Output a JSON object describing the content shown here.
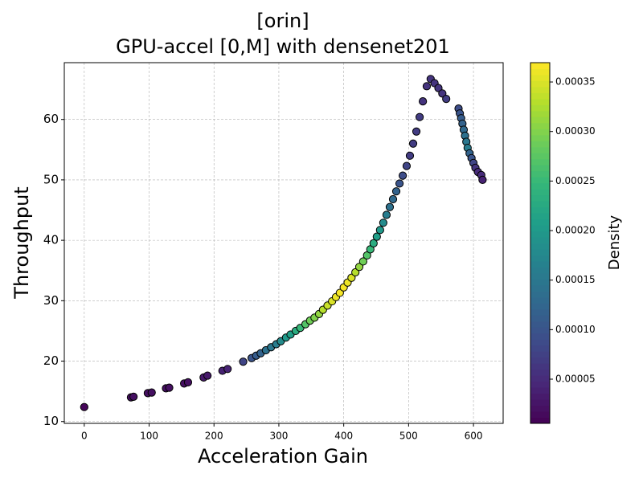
{
  "chart_data": {
    "type": "scatter",
    "title": [
      "[orin]",
      "GPU-accel [0,M] with densenet201"
    ],
    "x_label": "Acceleration Gain",
    "y_label": "Throughput",
    "colorbar_label": "Density",
    "colormap": "viridis",
    "grid": true,
    "xlim": [
      -30.75,
      645.75
    ],
    "xticks": [
      0,
      100,
      200,
      300,
      400,
      500,
      600
    ],
    "ylim": [
      9.7,
      69.4
    ],
    "yticks": [
      10,
      20,
      30,
      40,
      50,
      60
    ],
    "clim": [
      5.4e-06,
      0.0003695
    ],
    "cticks": [
      {
        "value": 5e-05,
        "label": "0.00005"
      },
      {
        "value": 0.0001,
        "label": "0.00010"
      },
      {
        "value": 0.00015,
        "label": "0.00015"
      },
      {
        "value": 0.0002,
        "label": "0.00020"
      },
      {
        "value": 0.00025,
        "label": "0.00025"
      },
      {
        "value": 0.0003,
        "label": "0.00030"
      },
      {
        "value": 0.00035,
        "label": "0.00035"
      }
    ],
    "x": [
      0,
      72,
      76,
      98,
      104,
      126,
      131,
      154,
      160,
      184,
      190,
      213,
      221,
      245,
      258,
      265,
      272,
      280,
      288,
      296,
      303,
      311,
      318,
      326,
      333,
      341,
      348,
      355,
      362,
      368,
      375,
      382,
      388,
      394,
      400,
      406,
      412,
      418,
      424,
      430,
      436,
      441,
      446,
      451,
      456,
      461,
      466,
      471,
      476,
      481,
      486,
      491,
      497,
      502,
      507,
      512,
      517,
      522,
      528,
      534,
      540,
      546,
      552,
      558,
      577,
      579,
      581,
      583,
      585,
      587,
      589,
      591,
      594,
      597,
      600,
      603,
      607,
      612,
      614
    ],
    "y": [
      12.4,
      14,
      14.1,
      14.7,
      14.8,
      15.5,
      15.6,
      16.3,
      16.5,
      17.3,
      17.6,
      18.4,
      18.7,
      19.9,
      20.5,
      20.9,
      21.3,
      21.8,
      22.3,
      22.8,
      23.3,
      23.9,
      24.4,
      25,
      25.5,
      26.1,
      26.7,
      27.2,
      27.8,
      28.5,
      29.2,
      29.9,
      30.6,
      31.3,
      32.2,
      33,
      33.8,
      34.7,
      35.6,
      36.5,
      37.5,
      38.5,
      39.5,
      40.6,
      41.7,
      42.9,
      44.2,
      45.5,
      46.8,
      48.1,
      49.4,
      50.7,
      52.3,
      54,
      56,
      58,
      60.4,
      63,
      65.5,
      66.7,
      66,
      65.2,
      64.3,
      63.4,
      61.8,
      61,
      60.2,
      59.3,
      58.3,
      57.3,
      56.3,
      55.3,
      54.4,
      53.6,
      52.8,
      52,
      51.3,
      50.8,
      50
    ],
    "density": [
      1e-05,
      2e-05,
      2e-05,
      2e-05,
      2e-05,
      2e-05,
      2e-05,
      2e-05,
      2e-05,
      3e-05,
      3e-05,
      4e-05,
      4e-05,
      8e-05,
      0.0001,
      0.00011,
      0.00012,
      0.00014,
      0.00015,
      0.00016,
      0.00018,
      0.0002,
      0.00021,
      0.00023,
      0.00025,
      0.00027,
      0.00029,
      0.0003,
      0.00031,
      0.00033,
      0.00034,
      0.00035,
      0.00036,
      0.000365,
      0.000365,
      0.00036,
      0.00035,
      0.00033,
      0.00031,
      0.00029,
      0.00027,
      0.00025,
      0.00023,
      0.00021,
      0.0002,
      0.00018,
      0.00016,
      0.00014,
      0.00013,
      0.00012,
      0.0001,
      9e-05,
      8e-05,
      7e-05,
      7e-05,
      7e-05,
      7e-05,
      6e-05,
      6e-05,
      6e-05,
      6e-05,
      6e-05,
      6e-05,
      7e-05,
      9e-05,
      0.0001,
      0.00011,
      0.00012,
      0.00013,
      0.00014,
      0.00015,
      0.00016,
      0.00012,
      0.0001,
      8e-05,
      6e-05,
      5e-05,
      5e-05,
      4e-05
    ]
  }
}
